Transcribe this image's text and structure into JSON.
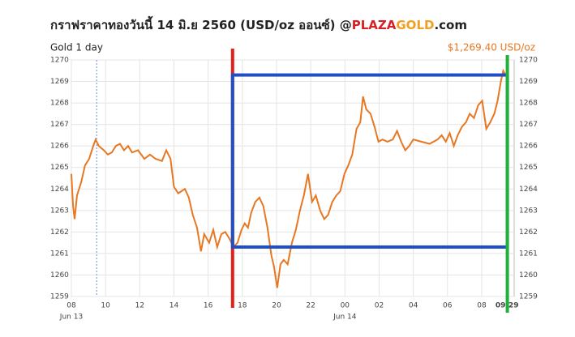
{
  "chart_data": {
    "type": "line",
    "title": "กราฟราคาทองวันนี้ 14 มิ.ย 2560 (USD/oz ออนซ์) @",
    "brand_red": "PLAZA",
    "brand_orange": "GOLD",
    "brand_suffix": ".com",
    "subtitle": "Gold 1 day",
    "price_label": "$1,269.40 USD/oz",
    "x": [
      0,
      0.1,
      0.19,
      0.33,
      0.57,
      0.8,
      1.04,
      1.28,
      1.42,
      1.6,
      1.9,
      2.13,
      2.37,
      2.6,
      2.84,
      3.08,
      3.32,
      3.55,
      3.9,
      4.27,
      4.6,
      4.93,
      5.3,
      5.55,
      5.8,
      6.0,
      6.25,
      6.64,
      6.87,
      7.1,
      7.35,
      7.58,
      7.77,
      8.06,
      8.3,
      8.53,
      8.77,
      9.0,
      9.24,
      9.48,
      9.72,
      9.95,
      10.14,
      10.33,
      10.52,
      10.76,
      11.0,
      11.23,
      11.47,
      11.7,
      11.85,
      12.04,
      12.23,
      12.42,
      12.65,
      12.9,
      13.13,
      13.37,
      13.6,
      13.84,
      14.08,
      14.3,
      14.55,
      14.79,
      15.02,
      15.26,
      15.5,
      15.73,
      15.97,
      16.2,
      16.43,
      16.68,
      16.9,
      17.06,
      17.25,
      17.5,
      17.73,
      17.96,
      18.2,
      18.48,
      18.8,
      19.05,
      19.29,
      19.53,
      19.76,
      20.0,
      20.47,
      20.95,
      21.42,
      21.66,
      21.9,
      22.13,
      22.37,
      22.6,
      22.85,
      23.08,
      23.3,
      23.55,
      23.8,
      24.03,
      24.27,
      24.5,
      24.74,
      24.93,
      25.12,
      25.26,
      25.4
    ],
    "series": [
      {
        "name": "Gold",
        "color": "#e87722",
        "values": [
          1264.7,
          1263.2,
          1262.6,
          1263.7,
          1264.3,
          1265.1,
          1265.4,
          1266.0,
          1266.3,
          1266.0,
          1265.8,
          1265.6,
          1265.7,
          1266.0,
          1266.1,
          1265.8,
          1266.0,
          1265.7,
          1265.8,
          1265.4,
          1265.6,
          1265.4,
          1265.3,
          1265.8,
          1265.4,
          1264.1,
          1263.8,
          1264.0,
          1263.6,
          1262.8,
          1262.2,
          1261.1,
          1261.9,
          1261.5,
          1262.1,
          1261.3,
          1261.9,
          1262.0,
          1261.7,
          1261.3,
          1261.5,
          1262.1,
          1262.4,
          1262.2,
          1262.9,
          1263.4,
          1263.6,
          1263.2,
          1262.2,
          1260.9,
          1260.4,
          1259.4,
          1260.5,
          1260.7,
          1260.5,
          1261.5,
          1262.1,
          1263.0,
          1263.7,
          1264.7,
          1263.4,
          1263.7,
          1263.0,
          1262.6,
          1262.8,
          1263.4,
          1263.7,
          1263.9,
          1264.7,
          1265.1,
          1265.6,
          1266.8,
          1267.1,
          1268.3,
          1267.7,
          1267.5,
          1266.9,
          1266.2,
          1266.3,
          1266.2,
          1266.3,
          1266.7,
          1266.2,
          1265.8,
          1266.0,
          1266.3,
          1266.2,
          1266.1,
          1266.3,
          1266.5,
          1266.2,
          1266.6,
          1266.0,
          1266.5,
          1266.9,
          1267.1,
          1267.5,
          1267.3,
          1267.9,
          1268.1,
          1266.8,
          1267.1,
          1267.5,
          1268.1,
          1269.0,
          1269.5,
          1269.3
        ]
      }
    ],
    "xlim": [
      0,
      25.9
    ],
    "ylim": [
      1259,
      1270
    ],
    "yticks": [
      1259,
      1260,
      1261,
      1262,
      1263,
      1264,
      1265,
      1266,
      1267,
      1268,
      1269,
      1270
    ],
    "xticks": [
      {
        "value": 0,
        "label": "08"
      },
      {
        "value": 2,
        "label": "10"
      },
      {
        "value": 4,
        "label": "12"
      },
      {
        "value": 6,
        "label": "14"
      },
      {
        "value": 8,
        "label": "16"
      },
      {
        "value": 10,
        "label": "18"
      },
      {
        "value": 12,
        "label": "20"
      },
      {
        "value": 14,
        "label": "22"
      },
      {
        "value": 16,
        "label": "00"
      },
      {
        "value": 18,
        "label": "02"
      },
      {
        "value": 20,
        "label": "04"
      },
      {
        "value": 22,
        "label": "06"
      },
      {
        "value": 24,
        "label": "08"
      },
      {
        "value": 25.48,
        "label": "09:29"
      }
    ],
    "date_labels": [
      {
        "value": 0,
        "label": "Jun 13"
      },
      {
        "value": 16,
        "label": "Jun 14"
      }
    ],
    "grid": true,
    "reference_x": 1.48,
    "reference_color": "#6f8fd8",
    "annotations": {
      "red_line_x": 9.43,
      "red_color": "#e0201c",
      "green_line_x": 25.5,
      "green_color": "#22b03a",
      "box_x": [
        9.43,
        25.5
      ],
      "box_y": [
        1261.3,
        1269.3
      ],
      "box_color": "#1f4fc8"
    }
  }
}
